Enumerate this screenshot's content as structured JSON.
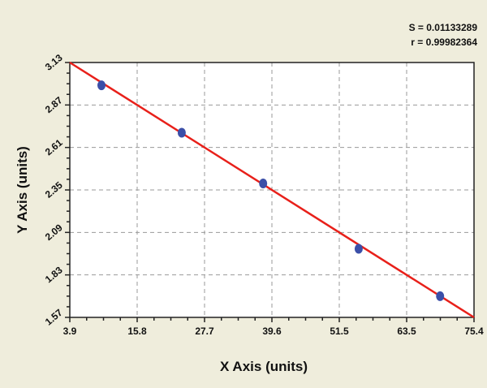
{
  "chart_data": {
    "type": "scatter",
    "xlabel": "X Axis (units)",
    "ylabel": "Y Axis (units)",
    "xlim": [
      3.9,
      75.4
    ],
    "ylim": [
      1.57,
      3.13
    ],
    "x_ticks": [
      "3.9",
      "15.8",
      "27.7",
      "39.6",
      "51.5",
      "63.5",
      "75.4"
    ],
    "y_ticks": [
      "3.13",
      "2.87",
      "2.61",
      "2.35",
      "2.09",
      "1.83",
      "1.57"
    ],
    "grid": true,
    "points": [
      {
        "x": 9.5,
        "y": 2.99
      },
      {
        "x": 23.7,
        "y": 2.7
      },
      {
        "x": 38.1,
        "y": 2.39
      },
      {
        "x": 55.0,
        "y": 1.99
      },
      {
        "x": 69.4,
        "y": 1.7
      }
    ],
    "fit_line": {
      "x": [
        3.9,
        75.4
      ],
      "y": [
        3.13,
        1.57
      ]
    },
    "annotations": [
      "S = 0.01133289",
      "r = 0.99982364"
    ],
    "colors": {
      "points": "#3b4fa8",
      "line": "#e8201a",
      "grid": "#9a9a9a",
      "background": "#efeddc",
      "plot": "#ffffff"
    }
  }
}
